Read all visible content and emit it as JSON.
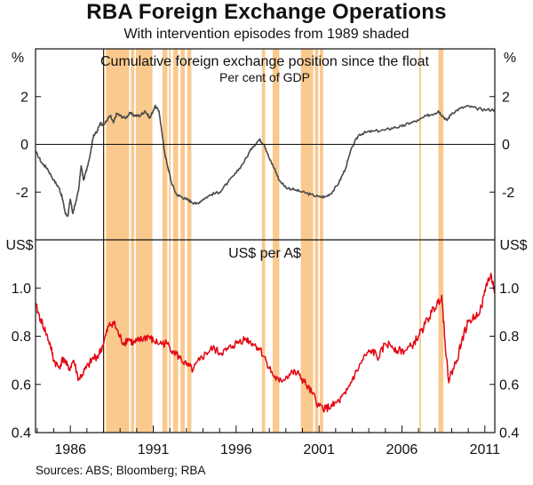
{
  "title": "RBA Foreign Exchange Operations",
  "subtitle": "With intervention episodes from 1989 shaded",
  "source": "Sources: ABS; Bloomberg; RBA",
  "colors": {
    "shade": "#F9C98D",
    "position_line": "#4a4a4a",
    "fx_line": "#e30613",
    "frame": "#111111",
    "zero_line": "#111111"
  },
  "chart_data": [
    {
      "type": "line",
      "title": "Cumulative foreign exchange position since the float",
      "subtitle": "Per cent of GDP",
      "left_unit": "%",
      "right_unit": "%",
      "ylim": [
        -4,
        4
      ],
      "yticks": [
        "2",
        "0",
        "-2"
      ],
      "ytick_values": [
        2,
        0,
        -2
      ],
      "xlim": [
        1983.9,
        2011.6
      ],
      "series": [
        {
          "x": [
            1983.9,
            1984.3,
            1984.6,
            1985.0,
            1985.3,
            1985.5,
            1985.7,
            1985.85,
            1986.0,
            1986.15,
            1986.3,
            1986.5,
            1986.65,
            1986.8,
            1987.0,
            1987.2,
            1987.4,
            1987.6,
            1987.8,
            1988.0,
            1988.2,
            1988.4,
            1988.6,
            1988.8,
            1989.0,
            1989.3,
            1989.6,
            1989.9,
            1990.2,
            1990.5,
            1990.8,
            1991.1,
            1991.35,
            1991.5,
            1991.7,
            1991.9,
            1992.1,
            1992.4,
            1992.7,
            1993.0,
            1993.3,
            1993.6,
            1994.0,
            1994.5,
            1995.0,
            1995.5,
            1996.0,
            1996.5,
            1997.0,
            1997.4,
            1997.7,
            1998.0,
            1998.3,
            1998.6,
            1999.0,
            1999.5,
            2000.0,
            2000.5,
            2001.0,
            2001.4,
            2001.8,
            2002.2,
            2002.6,
            2003.0,
            2003.4,
            2003.8,
            2004.3,
            2005.0,
            2005.5,
            2006.0,
            2006.5,
            2007.0,
            2007.5,
            2008.0,
            2008.2,
            2008.45,
            2008.7,
            2009.0,
            2009.5,
            2010.0,
            2010.5,
            2011.0,
            2011.6
          ],
          "values": [
            -0.3,
            -0.8,
            -1.0,
            -1.5,
            -1.8,
            -2.2,
            -2.9,
            -3.0,
            -2.3,
            -2.9,
            -2.5,
            -1.9,
            -0.9,
            -1.5,
            -1.0,
            -0.4,
            0.4,
            0.5,
            0.9,
            0.8,
            1.0,
            1.2,
            0.9,
            1.3,
            1.2,
            1.1,
            1.3,
            1.2,
            1.2,
            1.4,
            1.1,
            1.6,
            1.4,
            0.6,
            -0.4,
            -1.0,
            -1.6,
            -2.1,
            -2.2,
            -2.3,
            -2.4,
            -2.5,
            -2.3,
            -2.1,
            -2.0,
            -1.6,
            -1.2,
            -0.7,
            -0.1,
            0.2,
            0.0,
            -0.6,
            -1.0,
            -1.5,
            -1.8,
            -1.9,
            -2.0,
            -2.1,
            -2.2,
            -2.2,
            -2.0,
            -1.6,
            -1.0,
            -0.1,
            0.4,
            0.5,
            0.55,
            0.6,
            0.7,
            0.75,
            0.9,
            1.0,
            1.2,
            1.3,
            1.4,
            1.2,
            1.0,
            1.3,
            1.5,
            1.6,
            1.5,
            1.45,
            1.45
          ]
        }
      ],
      "grid": false
    },
    {
      "type": "line",
      "title": "US$ per A$",
      "left_unit": "US$",
      "right_unit": "US$",
      "ylim": [
        0.4,
        1.2
      ],
      "yticks": [
        "1.0",
        "0.8",
        "0.6",
        "0.4"
      ],
      "ytick_values": [
        1.0,
        0.8,
        0.6,
        0.4
      ],
      "xlim": [
        1983.9,
        2011.6
      ],
      "x_tick_labels": [
        "1986",
        "1991",
        "1996",
        "2001",
        "2006",
        "2011"
      ],
      "x_tick_values": [
        1986,
        1991,
        1996,
        2001,
        2006,
        2011
      ],
      "series": [
        {
          "x": [
            1983.9,
            1984.2,
            1984.5,
            1984.8,
            1985.0,
            1985.3,
            1985.6,
            1985.9,
            1986.2,
            1986.5,
            1986.8,
            1987.1,
            1987.4,
            1987.7,
            1988.0,
            1988.3,
            1988.6,
            1988.9,
            1989.2,
            1989.5,
            1989.8,
            1990.1,
            1990.4,
            1990.7,
            1991.0,
            1991.4,
            1991.8,
            1992.2,
            1992.6,
            1993.0,
            1993.4,
            1993.8,
            1994.2,
            1994.6,
            1995.0,
            1995.4,
            1995.8,
            1996.2,
            1996.6,
            1997.0,
            1997.4,
            1997.8,
            1998.2,
            1998.6,
            1999.0,
            1999.4,
            1999.8,
            2000.2,
            2000.6,
            2001.0,
            2001.4,
            2001.8,
            2002.2,
            2002.6,
            2003.0,
            2003.4,
            2003.8,
            2004.2,
            2004.6,
            2005.0,
            2005.4,
            2005.8,
            2006.2,
            2006.6,
            2007.0,
            2007.4,
            2007.8,
            2008.1,
            2008.4,
            2008.6,
            2008.8,
            2009.0,
            2009.3,
            2009.6,
            2010.0,
            2010.4,
            2010.8,
            2011.1,
            2011.4,
            2011.6
          ],
          "values": [
            0.93,
            0.87,
            0.82,
            0.76,
            0.7,
            0.67,
            0.71,
            0.66,
            0.7,
            0.62,
            0.65,
            0.68,
            0.71,
            0.72,
            0.77,
            0.84,
            0.86,
            0.81,
            0.77,
            0.79,
            0.77,
            0.78,
            0.79,
            0.8,
            0.78,
            0.77,
            0.77,
            0.74,
            0.71,
            0.68,
            0.66,
            0.7,
            0.73,
            0.75,
            0.73,
            0.74,
            0.76,
            0.78,
            0.79,
            0.77,
            0.75,
            0.7,
            0.64,
            0.61,
            0.63,
            0.65,
            0.64,
            0.6,
            0.56,
            0.51,
            0.5,
            0.51,
            0.53,
            0.56,
            0.62,
            0.67,
            0.72,
            0.74,
            0.71,
            0.77,
            0.76,
            0.74,
            0.74,
            0.76,
            0.8,
            0.85,
            0.9,
            0.93,
            0.97,
            0.78,
            0.62,
            0.65,
            0.7,
            0.78,
            0.86,
            0.88,
            0.92,
            1.02,
            1.05,
            0.98
          ]
        }
      ],
      "grid": false
    }
  ],
  "intervention_periods": [
    [
      1988.0,
      1988.08
    ],
    [
      1988.15,
      1989.55
    ],
    [
      1989.65,
      1989.85
    ],
    [
      1989.95,
      1990.95
    ],
    [
      1991.55,
      1991.85
    ],
    [
      1991.95,
      1992.05
    ],
    [
      1992.2,
      1992.5
    ],
    [
      1992.65,
      1992.9
    ],
    [
      1993.05,
      1993.3
    ],
    [
      1997.55,
      1997.75
    ],
    [
      1998.2,
      1998.6
    ],
    [
      1999.9,
      2000.65
    ],
    [
      2000.75,
      2000.95
    ],
    [
      2001.05,
      2001.25
    ],
    [
      2007.05,
      2007.15
    ],
    [
      2008.2,
      2008.5
    ]
  ]
}
